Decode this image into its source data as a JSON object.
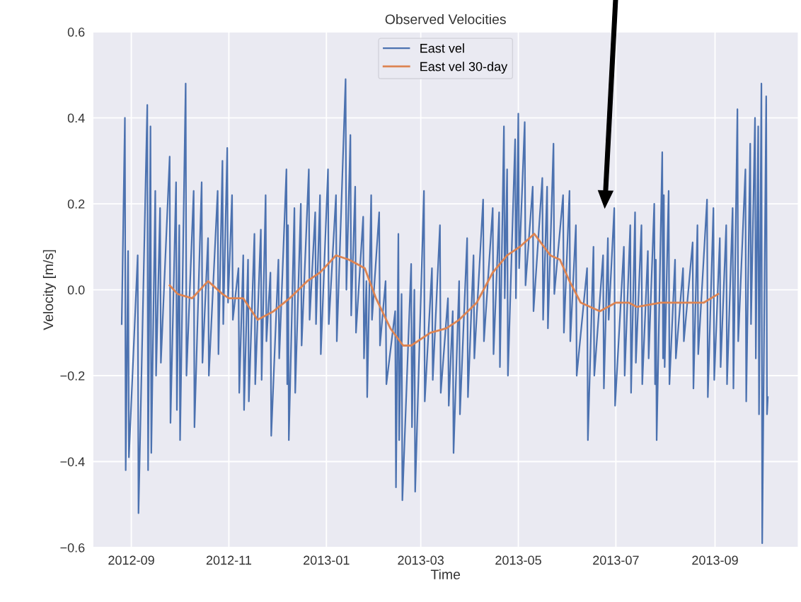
{
  "chart_data": {
    "type": "line",
    "title": "Observed Velocities",
    "xlabel": "Time",
    "ylabel": "Velocity [m/s]",
    "xlim": [
      "2012-08-08",
      "2013-10-23"
    ],
    "xticks": [
      {
        "value": "2012-09",
        "label": "2012-09"
      },
      {
        "value": "2012-11",
        "label": "2012-11"
      },
      {
        "value": "2013-01",
        "label": "2013-01"
      },
      {
        "value": "2013-03",
        "label": "2013-03"
      },
      {
        "value": "2013-05",
        "label": "2013-05"
      },
      {
        "value": "2013-07",
        "label": "2013-07"
      },
      {
        "value": "2013-09",
        "label": "2013-09"
      }
    ],
    "ylim": [
      -0.6,
      0.6
    ],
    "yticks": [
      {
        "value": -0.6,
        "label": "−0.6"
      },
      {
        "value": -0.4,
        "label": "−0.4"
      },
      {
        "value": -0.2,
        "label": "−0.2"
      },
      {
        "value": 0,
        "label": "0.0"
      },
      {
        "value": 0.2,
        "label": "0.2"
      },
      {
        "value": 0.4,
        "label": "0.4"
      },
      {
        "value": 0.6,
        "label": "0.6"
      }
    ],
    "grid": true,
    "legend": "top",
    "marker": "none",
    "line_style": "solid",
    "series": [
      {
        "name": "East vel",
        "color": "#4c72b0",
        "x": [
          "2012-08-26",
          "2012-08-28",
          "2012-08-28T12:00",
          "2012-08-30",
          "2012-08-30T12:00",
          "2012-09-05",
          "2012-09-05T12:00",
          "2012-09-11",
          "2012-09-11T12:00",
          "2012-09-13",
          "2012-09-13T12:00",
          "2012-09-16",
          "2012-09-16T12:00",
          "2012-09-19",
          "2012-09-19T12:00",
          "2012-09-25",
          "2012-09-25T12:00",
          "2012-09-29",
          "2012-09-29T12:00",
          "2012-10-01",
          "2012-10-01T12:00",
          "2012-10-05",
          "2012-10-05T12:00",
          "2012-10-10",
          "2012-10-10T12:00",
          "2012-10-15",
          "2012-10-15T12:00",
          "2012-10-19",
          "2012-10-19T12:00",
          "2012-10-25",
          "2012-10-25T12:00",
          "2012-10-28",
          "2012-10-28T12:00",
          "2012-10-31",
          "2012-10-31T12:00",
          "2012-11-03",
          "2012-11-03T12:00",
          "2012-11-07",
          "2012-11-07T12:00",
          "2012-11-10",
          "2012-11-10T12:00",
          "2012-11-13",
          "2012-11-13T12:00",
          "2012-11-17",
          "2012-11-17T12:00",
          "2012-11-21",
          "2012-11-21T12:00",
          "2012-11-24",
          "2012-11-24T12:00",
          "2012-11-27",
          "2012-11-27T12:00",
          "2012-12-02",
          "2012-12-02T12:00",
          "2012-12-07",
          "2012-12-07T12:00",
          "2012-12-08",
          "2012-12-08T12:00",
          "2012-12-12",
          "2012-12-12T12:00",
          "2012-12-16",
          "2012-12-16T12:00",
          "2012-12-21",
          "2012-12-21T12:00",
          "2012-12-25",
          "2012-12-25T12:00",
          "2012-12-28",
          "2012-12-28T12:00",
          "2013-01-02",
          "2013-01-02T12:00",
          "2013-01-07",
          "2013-01-07T12:00",
          "2013-01-13",
          "2013-01-13T12:00",
          "2013-01-16",
          "2013-01-16T12:00",
          "2013-01-19",
          "2013-01-19T12:00",
          "2013-01-24",
          "2013-01-24T12:00",
          "2013-01-26",
          "2013-01-26T12:00",
          "2013-01-29",
          "2013-01-29T12:00",
          "2013-02-03",
          "2013-02-03T12:00",
          "2013-02-07",
          "2013-02-07T12:00",
          "2013-02-13",
          "2013-02-13T12:00",
          "2013-02-15",
          "2013-02-15T12:00",
          "2013-02-17",
          "2013-02-17T12:00",
          "2013-02-23",
          "2013-02-23T12:00",
          "2013-02-25",
          "2013-02-25T12:00",
          "2013-03-03",
          "2013-03-03T12:00",
          "2013-03-08",
          "2013-03-08T12:00",
          "2013-03-13",
          "2013-03-13T12:00",
          "2013-03-18",
          "2013-03-18T12:00",
          "2013-03-21",
          "2013-03-21T12:00",
          "2013-03-25",
          "2013-03-25T12:00",
          "2013-03-30",
          "2013-03-30T12:00",
          "2013-04-03",
          "2013-04-03T12:00",
          "2013-04-09",
          "2013-04-09T12:00",
          "2013-04-15",
          "2013-04-15T12:00",
          "2013-04-19",
          "2013-04-19T12:00",
          "2013-04-22",
          "2013-04-22T12:00",
          "2013-04-24",
          "2013-04-24T12:00",
          "2013-04-29",
          "2013-04-29T12:00",
          "2013-05-01",
          "2013-05-01T12:00",
          "2013-05-05",
          "2013-05-05T12:00",
          "2013-05-10",
          "2013-05-10T12:00",
          "2013-05-16",
          "2013-05-16T12:00",
          "2013-05-19",
          "2013-05-19T12:00",
          "2013-05-23",
          "2013-05-23T12:00",
          "2013-05-29",
          "2013-05-29T12:00",
          "2013-06-02",
          "2013-06-02T12:00",
          "2013-06-06",
          "2013-06-06T12:00",
          "2013-06-13",
          "2013-06-13T12:00",
          "2013-06-17",
          "2013-06-17T12:00",
          "2013-06-23",
          "2013-06-23T12:00",
          "2013-06-26",
          "2013-06-26T12:00",
          "2013-06-30",
          "2013-06-30T12:00",
          "2013-07-06",
          "2013-07-06T12:00",
          "2013-07-10",
          "2013-07-10T12:00",
          "2013-07-13",
          "2013-07-13T12:00",
          "2013-07-17",
          "2013-07-17T12:00",
          "2013-07-21",
          "2013-07-21T12:00",
          "2013-07-25",
          "2013-07-25T12:00",
          "2013-07-26",
          "2013-07-26T12:00",
          "2013-07-30",
          "2013-07-30T12:00",
          "2013-07-31",
          "2013-07-31T12:00",
          "2013-08-03",
          "2013-08-03T12:00",
          "2013-08-07",
          "2013-08-07T12:00",
          "2013-08-12",
          "2013-08-12T12:00",
          "2013-08-18",
          "2013-08-18T12:00",
          "2013-08-21",
          "2013-08-21T12:00",
          "2013-08-27",
          "2013-08-27T12:00",
          "2013-08-31",
          "2013-08-31T12:00",
          "2013-09-04",
          "2013-09-04T12:00",
          "2013-09-08",
          "2013-09-08T12:00",
          "2013-09-12",
          "2013-09-12T12:00",
          "2013-09-15",
          "2013-09-15T12:00",
          "2013-09-20",
          "2013-09-20T12:00",
          "2013-09-23",
          "2013-09-23T12:00",
          "2013-09-26",
          "2013-09-26T12:00",
          "2013-09-28",
          "2013-09-28T12:00",
          "2013-09-30",
          "2013-09-30T12:00",
          "2013-10-03",
          "2013-10-03T12:00",
          "2013-10-04"
        ],
        "values": [
          -0.08,
          0.4,
          -0.42,
          0.09,
          -0.39,
          0.08,
          -0.52,
          0.43,
          -0.42,
          0.38,
          -0.38,
          0.23,
          -0.2,
          0.19,
          -0.17,
          0.31,
          -0.31,
          0.25,
          -0.28,
          0.15,
          -0.35,
          0.48,
          -0.2,
          0.23,
          -0.32,
          0.25,
          -0.17,
          0.12,
          -0.2,
          0.23,
          -0.15,
          0.3,
          -0.08,
          0.33,
          -0.03,
          0.22,
          -0.07,
          0.05,
          -0.24,
          0.08,
          -0.28,
          0.07,
          -0.26,
          0.13,
          -0.22,
          0.14,
          -0.21,
          0.22,
          -0.12,
          0.04,
          -0.34,
          0.07,
          -0.16,
          0.28,
          -0.22,
          0.15,
          -0.35,
          0.19,
          -0.24,
          0.2,
          -0.13,
          0.28,
          -0.07,
          0.18,
          -0.08,
          0.22,
          -0.15,
          0.28,
          -0.08,
          0.22,
          -0.12,
          0.49,
          0.0,
          0.36,
          -0.06,
          0.24,
          -0.1,
          0.17,
          -0.16,
          0.02,
          -0.25,
          0.22,
          -0.07,
          0.18,
          -0.13,
          0.02,
          -0.22,
          -0.05,
          -0.46,
          0.13,
          -0.35,
          -0.01,
          -0.49,
          0.06,
          -0.32,
          0.0,
          -0.47,
          0.23,
          -0.26,
          0.05,
          -0.21,
          0.15,
          -0.24,
          -0.02,
          -0.27,
          -0.05,
          -0.38,
          0.02,
          -0.29,
          0.12,
          -0.25,
          0.08,
          -0.16,
          0.21,
          -0.12,
          0.19,
          -0.15,
          0.18,
          -0.18,
          0.38,
          -0.02,
          0.28,
          -0.2,
          0.35,
          -0.02,
          0.41,
          0.05,
          0.39,
          0.01,
          0.24,
          -0.05,
          0.26,
          -0.07,
          0.24,
          -0.09,
          0.34,
          -0.01,
          0.22,
          -0.1,
          0.23,
          -0.12,
          0.15,
          -0.2,
          0.05,
          -0.35,
          0.1,
          -0.2,
          0.08,
          -0.23,
          0.12,
          -0.07,
          0.19,
          -0.27,
          0.1,
          -0.2,
          0.15,
          -0.24,
          0.18,
          -0.17,
          0.15,
          -0.22,
          0.09,
          -0.16,
          0.2,
          -0.22,
          0.07,
          -0.35,
          0.32,
          -0.16,
          0.22,
          -0.18,
          0.23,
          -0.22,
          0.07,
          -0.16,
          0.05,
          -0.12,
          0.11,
          -0.23,
          0.15,
          -0.15,
          0.21,
          -0.25,
          0.19,
          -0.21,
          0.12,
          -0.18,
          0.15,
          -0.22,
          0.19,
          -0.23,
          0.42,
          -0.12,
          0.28,
          -0.26,
          0.34,
          -0.08,
          0.4,
          -0.16,
          0.38,
          -0.29,
          0.48,
          -0.59,
          0.45,
          -0.29,
          -0.25
        ]
      },
      {
        "name": "East vel 30-day",
        "color": "#dd8452",
        "x": [
          "2012-09-25",
          "2012-09-30",
          "2012-10-09",
          "2012-10-19",
          "2012-10-28",
          "2012-11-01",
          "2012-11-10",
          "2012-11-19",
          "2012-11-29",
          "2012-12-09",
          "2012-12-20",
          "2012-12-28",
          "2013-01-07",
          "2013-01-15",
          "2013-01-25",
          "2013-02-01",
          "2013-02-10",
          "2013-02-18",
          "2013-02-23",
          "2013-03-07",
          "2013-03-17",
          "2013-03-25",
          "2013-04-05",
          "2013-04-15",
          "2013-04-24",
          "2013-05-02",
          "2013-05-11",
          "2013-05-21",
          "2013-05-27",
          "2013-06-02",
          "2013-06-09",
          "2013-06-21",
          "2013-07-01",
          "2013-07-09",
          "2013-07-14",
          "2013-07-29",
          "2013-08-12",
          "2013-08-25",
          "2013-09-03"
        ],
        "values": [
          0.01,
          -0.01,
          -0.02,
          0.02,
          -0.01,
          -0.02,
          -0.02,
          -0.07,
          -0.05,
          -0.02,
          0.02,
          0.04,
          0.08,
          0.07,
          0.05,
          -0.02,
          -0.09,
          -0.13,
          -0.13,
          -0.1,
          -0.09,
          -0.07,
          -0.03,
          0.04,
          0.08,
          0.1,
          0.13,
          0.08,
          0.07,
          0.02,
          -0.03,
          -0.05,
          -0.03,
          -0.03,
          -0.04,
          -0.03,
          -0.03,
          -0.03,
          -0.01
        ]
      }
    ]
  }
}
